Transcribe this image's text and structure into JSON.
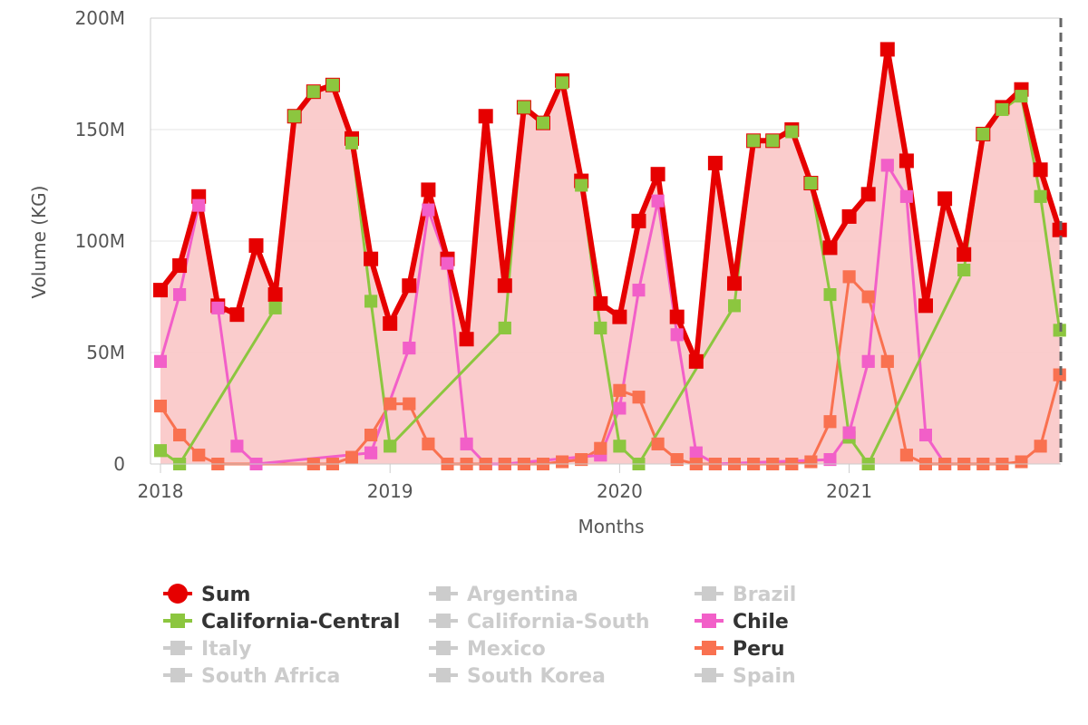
{
  "chart_data": {
    "type": "line",
    "title": "",
    "xlabel": "Months",
    "ylabel": "Volume (KG)",
    "ylim": [
      0,
      200000000
    ],
    "y_ticks": [
      {
        "value": 0,
        "label": "0"
      },
      {
        "value": 50000000,
        "label": "50M"
      },
      {
        "value": 100000000,
        "label": "100M"
      },
      {
        "value": 150000000,
        "label": "150M"
      },
      {
        "value": 200000000,
        "label": "200M"
      }
    ],
    "x_ticks": [
      "2018",
      "2019",
      "2020",
      "2021"
    ],
    "x_start": "2018-01",
    "x_end": "2021-12",
    "colors": {
      "sum": "#e60000",
      "sum_fill": "#f9c6c6",
      "california_central": "#8cc63f",
      "chile": "#f25fc8",
      "peru": "#f97150",
      "inactive": "#cccccc",
      "plot_border": "#cccccc",
      "dashed_line": "#666666"
    },
    "series": [
      {
        "name": "Sum",
        "points": [
          [
            "2018-01",
            78000000
          ],
          [
            "2018-02",
            89000000
          ],
          [
            "2018-03",
            120000000
          ],
          [
            "2018-04",
            71000000
          ],
          [
            "2018-05",
            67000000
          ],
          [
            "2018-06",
            98000000
          ],
          [
            "2018-07",
            76000000
          ],
          [
            "2018-08",
            156000000
          ],
          [
            "2018-09",
            167000000
          ],
          [
            "2018-10",
            170000000
          ],
          [
            "2018-11",
            146000000
          ],
          [
            "2018-12",
            92000000
          ],
          [
            "2019-01",
            63000000
          ],
          [
            "2019-02",
            80000000
          ],
          [
            "2019-03",
            123000000
          ],
          [
            "2019-04",
            92000000
          ],
          [
            "2019-05",
            56000000
          ],
          [
            "2019-06",
            156000000
          ],
          [
            "2019-07",
            80000000
          ],
          [
            "2019-08",
            160000000
          ],
          [
            "2019-09",
            153000000
          ],
          [
            "2019-10",
            172000000
          ],
          [
            "2019-11",
            127000000
          ],
          [
            "2019-12",
            72000000
          ],
          [
            "2020-01",
            66000000
          ],
          [
            "2020-02",
            109000000
          ],
          [
            "2020-03",
            130000000
          ],
          [
            "2020-04",
            66000000
          ],
          [
            "2020-05",
            46000000
          ],
          [
            "2020-06",
            135000000
          ],
          [
            "2020-07",
            81000000
          ],
          [
            "2020-08",
            145000000
          ],
          [
            "2020-09",
            145000000
          ],
          [
            "2020-10",
            150000000
          ],
          [
            "2020-11",
            126000000
          ],
          [
            "2020-12",
            97000000
          ],
          [
            "2021-01",
            111000000
          ],
          [
            "2021-02",
            121000000
          ],
          [
            "2021-03",
            186000000
          ],
          [
            "2021-04",
            136000000
          ],
          [
            "2021-05",
            71000000
          ],
          [
            "2021-06",
            119000000
          ],
          [
            "2021-07",
            94000000
          ],
          [
            "2021-08",
            148000000
          ],
          [
            "2021-09",
            160000000
          ],
          [
            "2021-10",
            168000000
          ],
          [
            "2021-11",
            132000000
          ],
          [
            "2021-12",
            105000000
          ]
        ]
      },
      {
        "name": "California-Central",
        "points": [
          [
            "2018-01",
            6000000
          ],
          [
            "2018-02",
            0
          ],
          [
            "2018-07",
            70000000
          ],
          [
            "2018-08",
            156000000
          ],
          [
            "2018-09",
            167000000
          ],
          [
            "2018-10",
            170000000
          ],
          [
            "2018-11",
            144000000
          ],
          [
            "2018-12",
            73000000
          ],
          [
            "2019-01",
            8000000
          ],
          [
            "2019-07",
            61000000
          ],
          [
            "2019-08",
            160000000
          ],
          [
            "2019-09",
            153000000
          ],
          [
            "2019-10",
            171000000
          ],
          [
            "2019-11",
            125000000
          ],
          [
            "2019-12",
            61000000
          ],
          [
            "2020-01",
            8000000
          ],
          [
            "2020-02",
            0
          ],
          [
            "2020-07",
            71000000
          ],
          [
            "2020-08",
            145000000
          ],
          [
            "2020-09",
            145000000
          ],
          [
            "2020-10",
            149000000
          ],
          [
            "2020-11",
            126000000
          ],
          [
            "2020-12",
            76000000
          ],
          [
            "2021-01",
            12000000
          ],
          [
            "2021-02",
            0
          ],
          [
            "2021-07",
            87000000
          ],
          [
            "2021-08",
            148000000
          ],
          [
            "2021-09",
            159000000
          ],
          [
            "2021-10",
            165000000
          ],
          [
            "2021-11",
            120000000
          ],
          [
            "2021-12",
            60000000
          ]
        ]
      },
      {
        "name": "Chile",
        "points": [
          [
            "2018-01",
            46000000
          ],
          [
            "2018-02",
            76000000
          ],
          [
            "2018-03",
            116000000
          ],
          [
            "2018-04",
            70000000
          ],
          [
            "2018-05",
            8000000
          ],
          [
            "2018-06",
            0
          ],
          [
            "2018-12",
            5000000
          ],
          [
            "2019-02",
            52000000
          ],
          [
            "2019-03",
            114000000
          ],
          [
            "2019-04",
            90000000
          ],
          [
            "2019-05",
            9000000
          ],
          [
            "2019-06",
            0
          ],
          [
            "2019-07",
            0
          ],
          [
            "2019-12",
            4000000
          ],
          [
            "2020-01",
            25000000
          ],
          [
            "2020-02",
            78000000
          ],
          [
            "2020-03",
            118000000
          ],
          [
            "2020-04",
            58000000
          ],
          [
            "2020-05",
            5000000
          ],
          [
            "2020-06",
            0
          ],
          [
            "2020-12",
            2000000
          ],
          [
            "2021-01",
            14000000
          ],
          [
            "2021-02",
            46000000
          ],
          [
            "2021-03",
            134000000
          ],
          [
            "2021-04",
            120000000
          ],
          [
            "2021-05",
            13000000
          ],
          [
            "2021-06",
            0
          ]
        ]
      },
      {
        "name": "Peru",
        "points": [
          [
            "2018-01",
            26000000
          ],
          [
            "2018-02",
            13000000
          ],
          [
            "2018-03",
            4000000
          ],
          [
            "2018-04",
            0
          ],
          [
            "2018-09",
            0
          ],
          [
            "2018-10",
            0
          ],
          [
            "2018-11",
            3000000
          ],
          [
            "2018-12",
            13000000
          ],
          [
            "2019-01",
            27000000
          ],
          [
            "2019-02",
            27000000
          ],
          [
            "2019-03",
            9000000
          ],
          [
            "2019-04",
            0
          ],
          [
            "2019-05",
            0
          ],
          [
            "2019-06",
            0
          ],
          [
            "2019-07",
            0
          ],
          [
            "2019-08",
            0
          ],
          [
            "2019-09",
            0
          ],
          [
            "2019-10",
            1000000
          ],
          [
            "2019-11",
            2000000
          ],
          [
            "2019-12",
            7000000
          ],
          [
            "2020-01",
            33000000
          ],
          [
            "2020-02",
            30000000
          ],
          [
            "2020-03",
            9000000
          ],
          [
            "2020-04",
            2000000
          ],
          [
            "2020-05",
            0
          ],
          [
            "2020-06",
            0
          ],
          [
            "2020-07",
            0
          ],
          [
            "2020-08",
            0
          ],
          [
            "2020-09",
            0
          ],
          [
            "2020-10",
            0
          ],
          [
            "2020-11",
            1000000
          ],
          [
            "2020-12",
            19000000
          ],
          [
            "2021-01",
            84000000
          ],
          [
            "2021-02",
            75000000
          ],
          [
            "2021-03",
            46000000
          ],
          [
            "2021-04",
            4000000
          ],
          [
            "2021-05",
            0
          ],
          [
            "2021-06",
            0
          ],
          [
            "2021-07",
            0
          ],
          [
            "2021-08",
            0
          ],
          [
            "2021-09",
            0
          ],
          [
            "2021-10",
            1000000
          ],
          [
            "2021-11",
            8000000
          ],
          [
            "2021-12",
            40000000
          ]
        ]
      }
    ],
    "legend": {
      "placement": "bottom",
      "items": [
        {
          "name": "Sum",
          "active": true,
          "marker": "circle",
          "color": "#e60000"
        },
        {
          "name": "Argentina",
          "active": false,
          "marker": "square",
          "color": "#cccccc"
        },
        {
          "name": "Brazil",
          "active": false,
          "marker": "square",
          "color": "#cccccc"
        },
        {
          "name": "California-Central",
          "active": true,
          "marker": "square",
          "color": "#8cc63f"
        },
        {
          "name": "California-South",
          "active": false,
          "marker": "square",
          "color": "#cccccc"
        },
        {
          "name": "Chile",
          "active": true,
          "marker": "square",
          "color": "#f25fc8"
        },
        {
          "name": "Italy",
          "active": false,
          "marker": "square",
          "color": "#cccccc"
        },
        {
          "name": "Mexico",
          "active": false,
          "marker": "square",
          "color": "#cccccc"
        },
        {
          "name": "Peru",
          "active": true,
          "marker": "square",
          "color": "#f97150"
        },
        {
          "name": "South Africa",
          "active": false,
          "marker": "square",
          "color": "#cccccc"
        },
        {
          "name": "South Korea",
          "active": false,
          "marker": "square",
          "color": "#cccccc"
        },
        {
          "name": "Spain",
          "active": false,
          "marker": "square",
          "color": "#cccccc"
        }
      ]
    },
    "grid": true
  }
}
